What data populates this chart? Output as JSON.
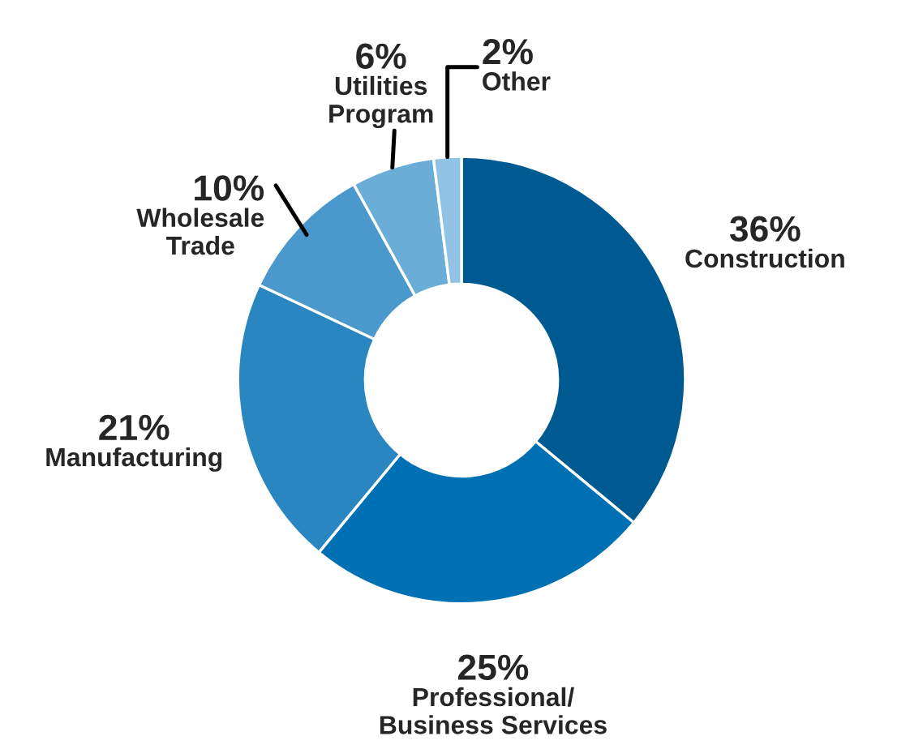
{
  "chart_data": {
    "type": "donut",
    "categories": [
      "Construction",
      "Professional/\nBusiness Services",
      "Manufacturing",
      "Wholesale\nTrade",
      "Utilities\nProgram",
      "Other"
    ],
    "values": [
      36,
      25,
      21,
      10,
      6,
      2
    ],
    "value_labels": [
      "36%",
      "25%",
      "21%",
      "10%",
      "6%",
      "2%"
    ],
    "colors": [
      "#005a92",
      "#0070b4",
      "#2a86c0",
      "#4a98cc",
      "#6aaed8",
      "#91c3e4"
    ],
    "legend": false
  }
}
